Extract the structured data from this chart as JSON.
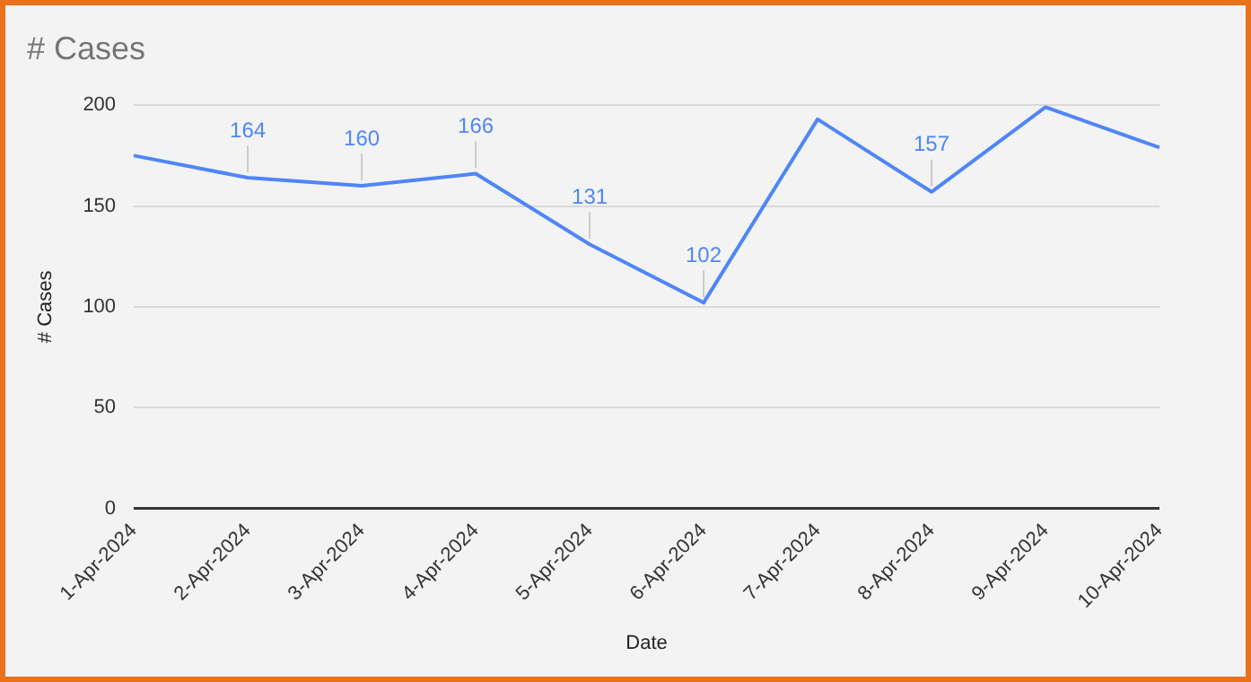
{
  "chart_data": {
    "type": "line",
    "title": "# Cases",
    "xlabel": "Date",
    "ylabel": "# Cases",
    "categories": [
      "1-Apr-2024",
      "2-Apr-2024",
      "3-Apr-2024",
      "4-Apr-2024",
      "5-Apr-2024",
      "6-Apr-2024",
      "7-Apr-2024",
      "8-Apr-2024",
      "9-Apr-2024",
      "10-Apr-2024"
    ],
    "series": [
      {
        "color": "#4f86f7",
        "values": [
          175,
          164,
          160,
          166,
          131,
          102,
          193,
          157,
          199,
          179
        ],
        "value_labels": [
          null,
          "164",
          "160",
          "166",
          "131",
          "102",
          null,
          "157",
          null,
          null
        ]
      }
    ],
    "ylim": [
      0,
      200
    ],
    "yticks": [
      0,
      50,
      100,
      150,
      200
    ],
    "grid": "y",
    "legend": false,
    "marker": "none",
    "line_style": "solid"
  }
}
